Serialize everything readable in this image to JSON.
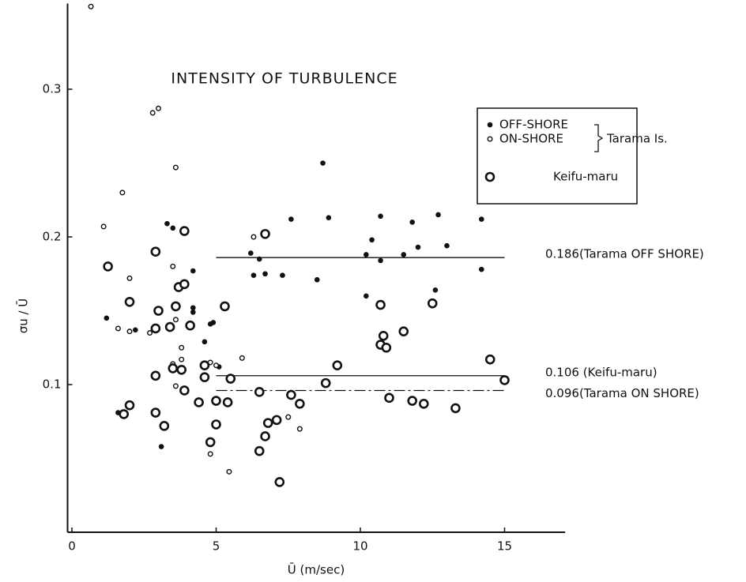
{
  "chart_data": {
    "type": "scatter",
    "title": "INTENSITY OF TURBULENCE",
    "x_label": "Ū (m/sec)",
    "y_label": "σu / Ū",
    "xlim": [
      -0.15,
      17.1
    ],
    "ylim": [
      0,
      0.358
    ],
    "xticks": [
      0,
      5,
      10,
      15
    ],
    "yticks": [
      0.1,
      0.2,
      0.3
    ],
    "legend_group": "Tarama Is.",
    "series": [
      {
        "name": "OFF-SHORE",
        "color": "#111111",
        "marker": "filled",
        "x": [
          1.2,
          1.6,
          2.2,
          3.1,
          3.3,
          3.5,
          4.2,
          4.2,
          4.2,
          4.6,
          4.8,
          4.9,
          5.1,
          6.2,
          6.3,
          6.5,
          6.7,
          7.3,
          7.6,
          8.5,
          8.7,
          8.9,
          10.2,
          10.2,
          10.4,
          10.7,
          10.7,
          11.5,
          11.8,
          12.0,
          12.6,
          12.7,
          13.0,
          14.2,
          14.2
        ],
        "values": [
          0.145,
          0.081,
          0.137,
          0.058,
          0.209,
          0.206,
          0.177,
          0.152,
          0.149,
          0.129,
          0.141,
          0.142,
          0.112,
          0.189,
          0.174,
          0.185,
          0.175,
          0.174,
          0.212,
          0.171,
          0.25,
          0.213,
          0.16,
          0.188,
          0.198,
          0.214,
          0.184,
          0.188,
          0.21,
          0.193,
          0.164,
          0.215,
          0.194,
          0.212,
          0.178
        ]
      },
      {
        "name": "ON-SHORE",
        "color": "#111111",
        "marker": "open-small",
        "x": [
          0.66,
          1.1,
          1.6,
          1.75,
          2.0,
          2.0,
          2.8,
          3.0,
          2.7,
          3.6,
          3.5,
          3.6,
          3.5,
          3.6,
          3.8,
          3.8,
          4.8,
          4.8,
          5.0,
          5.9,
          5.45,
          6.3,
          7.5,
          7.9
        ],
        "values": [
          0.356,
          0.207,
          0.138,
          0.23,
          0.136,
          0.172,
          0.284,
          0.287,
          0.135,
          0.247,
          0.18,
          0.144,
          0.114,
          0.099,
          0.117,
          0.125,
          0.115,
          0.053,
          0.113,
          0.118,
          0.041,
          0.2,
          0.078,
          0.07
        ]
      },
      {
        "name": "Keifu-maru",
        "color": "#111111",
        "marker": "open-large",
        "x": [
          1.25,
          1.8,
          2.0,
          2.0,
          2.9,
          2.9,
          3.2,
          2.9,
          3.0,
          2.9,
          3.7,
          3.9,
          3.6,
          3.4,
          3.5,
          3.8,
          3.9,
          4.1,
          3.9,
          4.4,
          4.6,
          4.6,
          4.8,
          5.0,
          5.0,
          5.5,
          5.4,
          5.3,
          6.5,
          6.5,
          6.7,
          6.8,
          7.1,
          6.7,
          7.2,
          7.6,
          7.9,
          8.8,
          9.2,
          11.0,
          10.7,
          10.8,
          10.9,
          10.7,
          11.5,
          11.8,
          12.2,
          12.5,
          13.3,
          14.5,
          15.0
        ],
        "values": [
          0.18,
          0.08,
          0.086,
          0.156,
          0.106,
          0.081,
          0.072,
          0.19,
          0.15,
          0.138,
          0.166,
          0.204,
          0.153,
          0.139,
          0.111,
          0.11,
          0.096,
          0.14,
          0.168,
          0.088,
          0.105,
          0.113,
          0.061,
          0.073,
          0.089,
          0.104,
          0.088,
          0.153,
          0.095,
          0.055,
          0.065,
          0.074,
          0.076,
          0.202,
          0.034,
          0.093,
          0.087,
          0.101,
          0.113,
          0.091,
          0.127,
          0.133,
          0.125,
          0.154,
          0.136,
          0.089,
          0.087,
          0.155,
          0.084,
          0.117,
          0.103
        ]
      }
    ],
    "reference_lines": [
      {
        "value": 0.186,
        "label": "0.186(Tarama OFF SHORE)",
        "style": "solid",
        "x": [
          5,
          15
        ]
      },
      {
        "value": 0.106,
        "label": "0.106 (Keifu-maru)",
        "style": "solid",
        "x": [
          5,
          15
        ]
      },
      {
        "value": 0.096,
        "label": "0.096(Tarama ON SHORE)",
        "style": "dashdot",
        "x": [
          5,
          15
        ]
      }
    ]
  }
}
